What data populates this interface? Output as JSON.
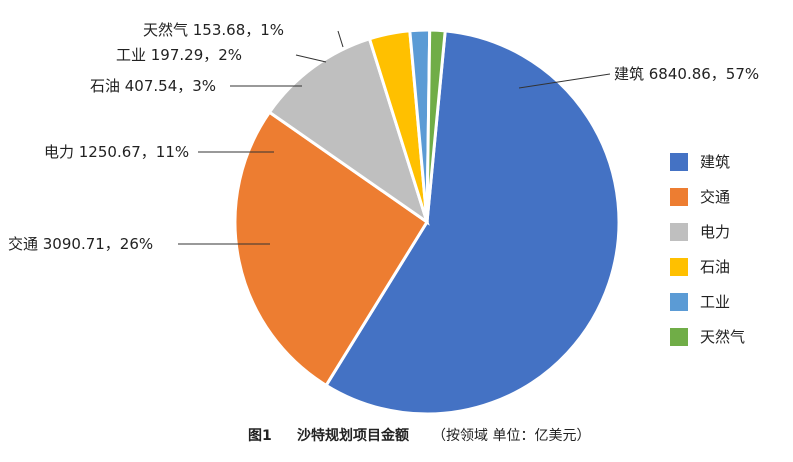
{
  "chart_data": {
    "type": "pie",
    "categories": [
      "建筑",
      "交通",
      "电力",
      "石油",
      "工业",
      "天然气"
    ],
    "values": [
      6840.86,
      3090.71,
      1250.67,
      407.54,
      197.29,
      153.68
    ],
    "percents": [
      "57%",
      "26%",
      "11%",
      "3%",
      "2%",
      "1%"
    ],
    "slice_labels": [
      "建筑 6840.86，57%",
      "交通 3090.71，26%",
      "电力 1250.67，11%",
      "石油 407.54，3%",
      "工业 197.29，2%",
      "天然气 153.68，1%"
    ],
    "colors": [
      "#4472C4",
      "#ED7D31",
      "#BFBFBF",
      "#FFC000",
      "#5B9BD5",
      "#70AD47"
    ],
    "legend": [
      "建筑",
      "交通",
      "电力",
      "石油",
      "工业",
      "天然气"
    ],
    "legend_position": "right"
  },
  "caption": {
    "figure": "图1",
    "title": "沙特规划项目金额",
    "note": "（按领域 单位：亿美元）"
  }
}
